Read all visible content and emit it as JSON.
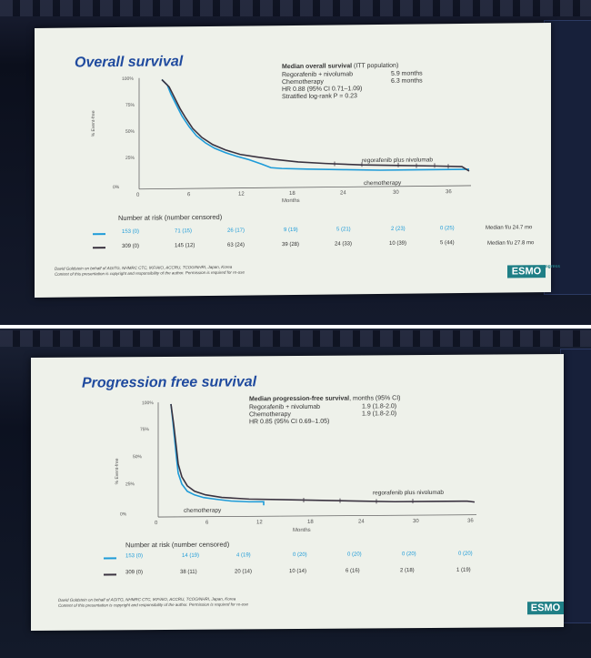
{
  "slides": [
    {
      "title": "Overall survival",
      "summary_header_bold": "Median overall survival",
      "summary_header_rest": " (ITT population)",
      "summary_rows": [
        {
          "label": "Regorafenib + nivolumab",
          "value": "5.9 months"
        },
        {
          "label": "Chemotherapy",
          "value": "6.3 months"
        }
      ],
      "hr_line": "HR 0.88 (95% CI 0.71–1.09)",
      "logrank_line": "Stratified log-rank P = 0.23",
      "y_axis_label": "% Event-free",
      "y_ticks": [
        "100%",
        "75%",
        "50%",
        "25%",
        "0%"
      ],
      "x_ticks": [
        "0",
        "6",
        "12",
        "18",
        "24",
        "30",
        "36"
      ],
      "x_axis_label": "Months",
      "curve_labels": {
        "regorafenib": "regorafenib plus nivolumab",
        "chemo": "chemotherapy"
      },
      "risk_header": "Number at risk (number censored)",
      "risk_rows": [
        {
          "values": [
            "153 (0)",
            "71 (15)",
            "26 (17)",
            "9 (19)",
            "5 (21)",
            "2 (23)",
            "0 (25)"
          ],
          "median": "Median f/u 24.7 mo"
        },
        {
          "values": [
            "309 (0)",
            "145 (12)",
            "63 (24)",
            "39 (28)",
            "24 (33)",
            "10 (39)",
            "5 (44)"
          ],
          "median": "Median f/u 27.8 mo"
        }
      ],
      "footnote_line1": "David Goldstein on behalf of AGITG, NHMRC CTC, IKF/AIO, ACCRU, TCOG/NHRI, Japan, Korea",
      "footnote_line2": "Content of this presentation is copyright and responsibility of the author. Permission is required for re-use",
      "logo_text": "ESMO",
      "logo_sup": "congress"
    },
    {
      "title": "Progression free survival",
      "summary_header_bold": "Median progression-free survival",
      "summary_header_rest": ", months (95% CI)",
      "summary_rows": [
        {
          "label": "Regorafenib + nivolumab",
          "value": "1.9 (1.8-2.0)"
        },
        {
          "label": "Chemotherapy",
          "value": "1.9 (1.8-2.0)"
        }
      ],
      "hr_line": "HR 0.85 (95% CI 0.69–1.05)",
      "y_axis_label": "% Event-free",
      "y_ticks": [
        "100%",
        "75%",
        "50%",
        "25%",
        "0%"
      ],
      "x_ticks": [
        "0",
        "6",
        "12",
        "18",
        "24",
        "30",
        "36"
      ],
      "x_axis_label": "Months",
      "curve_labels": {
        "regorafenib": "regorafenib plus nivolumab",
        "chemo": "chemotherapy"
      },
      "risk_header": "Number at risk (number censored)",
      "risk_rows": [
        {
          "values": [
            "153 (0)",
            "14 (19)",
            "4 (19)",
            "0 (20)",
            "0 (20)",
            "0 (20)",
            "0 (20)"
          ]
        },
        {
          "values": [
            "309 (0)",
            "38 (11)",
            "20 (14)",
            "10 (14)",
            "6 (16)",
            "2 (18)",
            "1 (19)"
          ]
        }
      ],
      "footnote_line1": "David Goldstein on behalf of AGITG, NHMRC CTC, IKF/AIO, ACCRU, TCOG/NHRI, Japan, Korea",
      "footnote_line2": "Content of this presentation is copyright and responsibility of the author. Permission is required for re-use",
      "logo_text": "ESMO"
    }
  ],
  "colors": {
    "blue_series": "#1d9bd8",
    "dark_series": "#3a3340",
    "title": "#1f4a9e",
    "logo": "#1f7f86"
  }
}
